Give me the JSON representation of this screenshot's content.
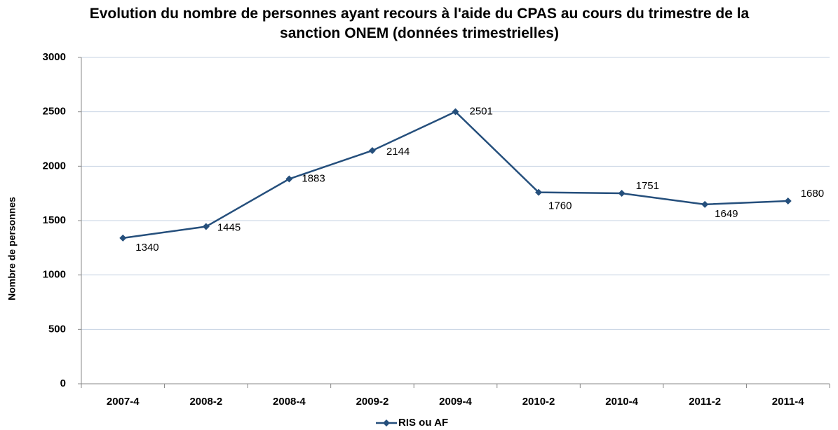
{
  "chart_data": {
    "type": "line",
    "title": "Evolution du nombre de personnes ayant recours à l'aide du CPAS au cours du trimestre de la sanction ONEM (données trimestrielles)",
    "y_label": "Nombre de personnes",
    "categories": [
      "2007-4",
      "2008-2",
      "2008-4",
      "2009-2",
      "2009-4",
      "2010-2",
      "2010-4",
      "2011-2",
      "2011-4"
    ],
    "series": [
      {
        "name": "RIS ou AF",
        "color": "#254f7c",
        "values": [
          1340,
          1445,
          1883,
          2144,
          2501,
          1760,
          1751,
          1649,
          1680
        ]
      }
    ],
    "ylim": [
      0,
      3000
    ],
    "yticks": [
      0,
      500,
      1000,
      1500,
      2000,
      2500,
      3000
    ],
    "grid": true,
    "legend": "bottom"
  }
}
